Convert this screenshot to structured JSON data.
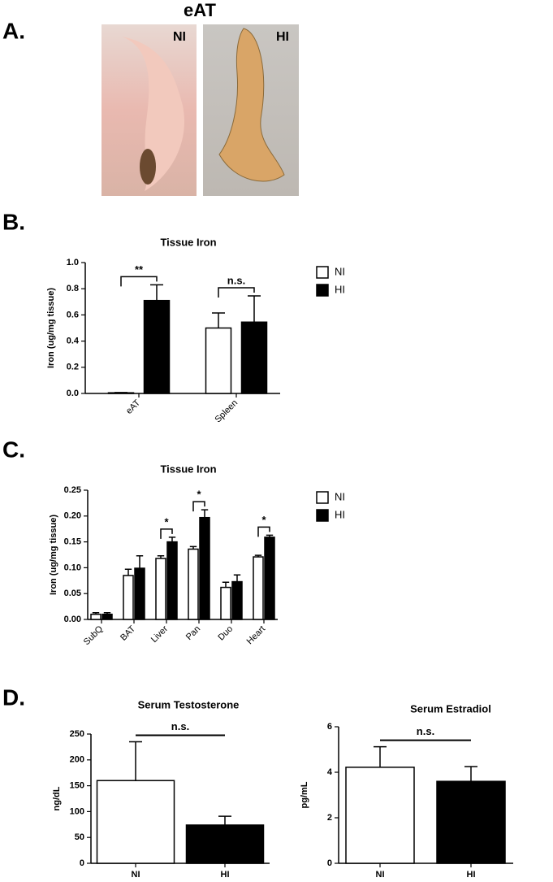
{
  "panel_labels": [
    "A.",
    "B.",
    "C.",
    "D."
  ],
  "photos": {
    "title": "eAT",
    "labels": [
      "NI",
      "HI"
    ]
  },
  "chart_data": [
    {
      "type": "bar",
      "title": "Tissue Iron",
      "y_label": "Iron (ug/mg tissue)",
      "categories": [
        "eAT",
        "Spleen"
      ],
      "series": [
        {
          "name": "NI",
          "color": "#ffffff",
          "values": [
            0.005,
            0.5
          ],
          "errors": [
            0.002,
            0.115
          ]
        },
        {
          "name": "HI",
          "color": "#000000",
          "values": [
            0.71,
            0.545
          ],
          "errors": [
            0.12,
            0.2
          ]
        }
      ],
      "annotations": [
        "**",
        "n.s."
      ],
      "ylim": [
        0,
        1
      ],
      "yticks": [
        {
          "value": 0,
          "label": "0.0"
        },
        0.2,
        0.4,
        0.6,
        0.8,
        {
          "value": 1,
          "label": "1.0"
        }
      ],
      "legend": "right"
    },
    {
      "type": "bar",
      "title": "Tissue Iron",
      "y_label": "Iron (ug/mg tissue)",
      "categories": [
        "SubQ",
        "BAT",
        "Liver",
        "Pan",
        "Duo",
        "Heart"
      ],
      "series": [
        {
          "name": "NI",
          "color": "#ffffff",
          "values": [
            0.01,
            0.085,
            0.118,
            0.136,
            0.062,
            0.121
          ],
          "errors": [
            0.003,
            0.012,
            0.005,
            0.005,
            0.01,
            0.003
          ]
        },
        {
          "name": "HI",
          "color": "#000000",
          "values": [
            0.01,
            0.099,
            0.15,
            0.197,
            0.073,
            0.159
          ],
          "errors": [
            0.003,
            0.024,
            0.009,
            0.015,
            0.013,
            0.004
          ]
        }
      ],
      "annotations": [
        null,
        null,
        "*",
        "*",
        null,
        "*"
      ],
      "ylim": [
        0,
        0.25
      ],
      "yticks": [
        {
          "value": 0,
          "label": "0.00"
        },
        {
          "value": 0.05,
          "label": "0.05"
        },
        {
          "value": 0.1,
          "label": "0.10"
        },
        {
          "value": 0.15,
          "label": "0.15"
        },
        {
          "value": 0.2,
          "label": "0.20"
        },
        {
          "value": 0.25,
          "label": "0.25"
        }
      ],
      "legend": "right"
    },
    {
      "type": "bar",
      "title": "Serum Testosterone",
      "y_label": "ng/dL",
      "categories": [
        "NI",
        "HI"
      ],
      "values": [
        160,
        74
      ],
      "errors": [
        75,
        17
      ],
      "colors": [
        "#ffffff",
        "#000000"
      ],
      "annotation": "n.s.",
      "ylim": [
        0,
        250
      ],
      "yticks": [
        0,
        50,
        100,
        150,
        200,
        250
      ]
    },
    {
      "type": "bar",
      "title": "Serum Estradiol",
      "y_label": "pg/mL",
      "categories": [
        "NI",
        "HI"
      ],
      "values": [
        4.22,
        3.6
      ],
      "errors": [
        0.9,
        0.65
      ],
      "colors": [
        "#ffffff",
        "#000000"
      ],
      "annotation": "n.s.",
      "ylim": [
        0,
        6
      ],
      "yticks": [
        0,
        2,
        4,
        6
      ]
    }
  ]
}
